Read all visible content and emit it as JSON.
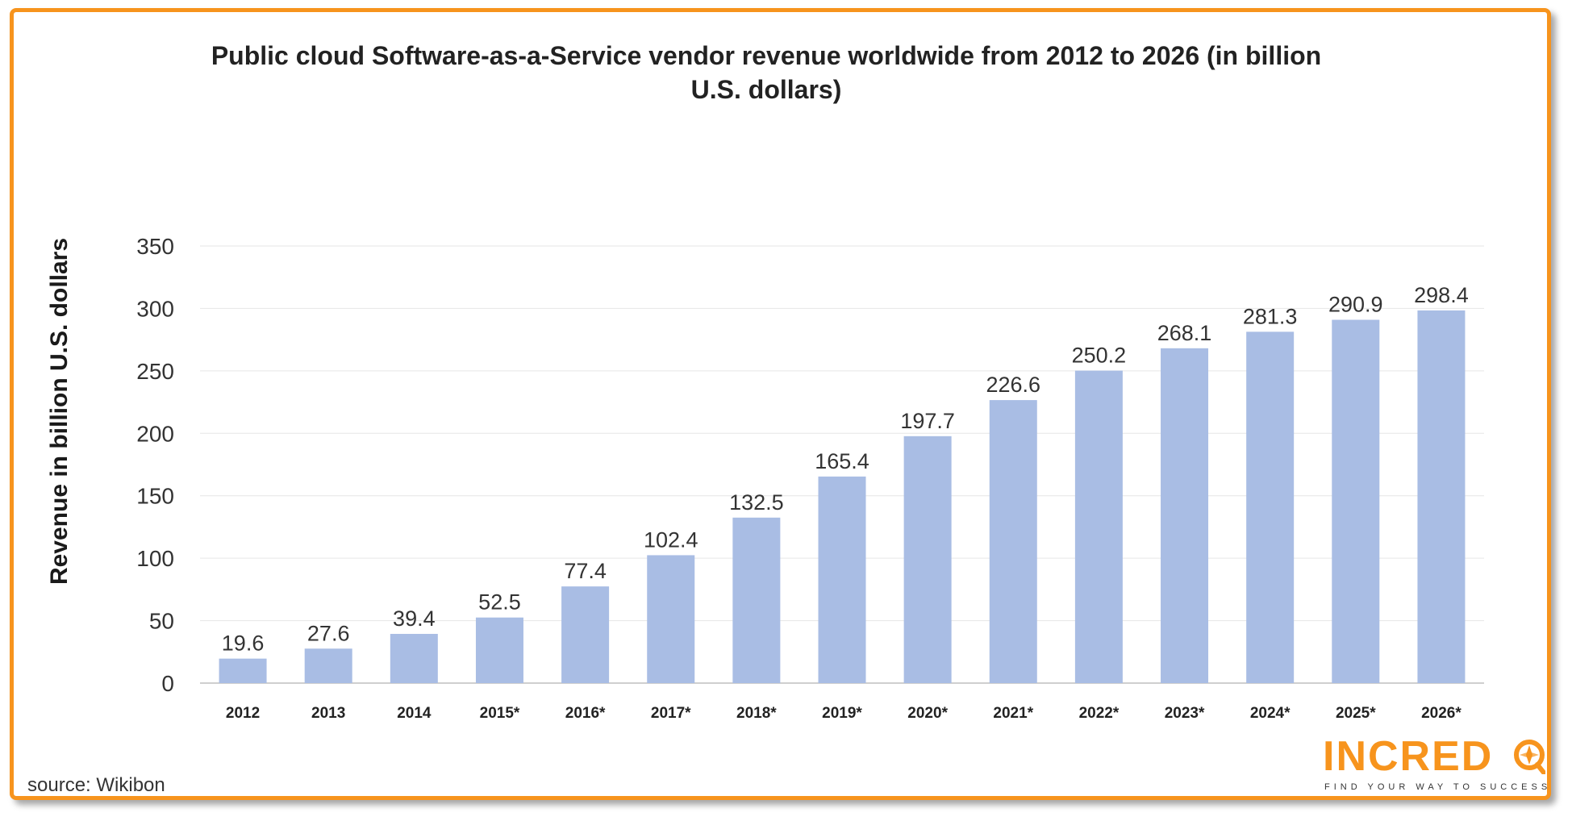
{
  "chart_data": {
    "type": "bar",
    "title": "Public cloud Software-as-a-Service vendor revenue worldwide from 2012 to 2026 (in billion U.S. dollars)",
    "xlabel": "",
    "ylabel": "Revenue in billion U.S. dollars",
    "categories": [
      "2012",
      "2013",
      "2014",
      "2015*",
      "2016*",
      "2017*",
      "2018*",
      "2019*",
      "2020*",
      "2021*",
      "2022*",
      "2023*",
      "2024*",
      "2025*",
      "2026*"
    ],
    "values": [
      19.6,
      27.6,
      39.4,
      52.5,
      77.4,
      102.4,
      132.5,
      165.4,
      197.7,
      226.6,
      250.2,
      268.1,
      281.3,
      290.9,
      298.4
    ],
    "value_labels": [
      "19.6",
      "27.6",
      "39.4",
      "52.5",
      "77.4",
      "102.4",
      "132.5",
      "165.4",
      "197.7",
      "226.6",
      "250.2",
      "268.1",
      "281.3",
      "290.9",
      "298.4"
    ],
    "yticks": [
      0,
      50,
      100,
      150,
      200,
      250,
      300,
      350
    ],
    "ytick_labels": [
      "0",
      "50",
      "100",
      "150",
      "200",
      "250",
      "300",
      "350"
    ],
    "ylim": [
      0,
      350
    ],
    "grid": true,
    "legend": "none",
    "bar_color": "#a9bde4"
  },
  "footer": {
    "source": "source: Wikibon",
    "logo_word": "INCRED",
    "logo_tagline": "FIND YOUR WAY TO SUCCESS"
  },
  "colors": {
    "frame": "#f7941d",
    "logo": "#f7941d"
  }
}
